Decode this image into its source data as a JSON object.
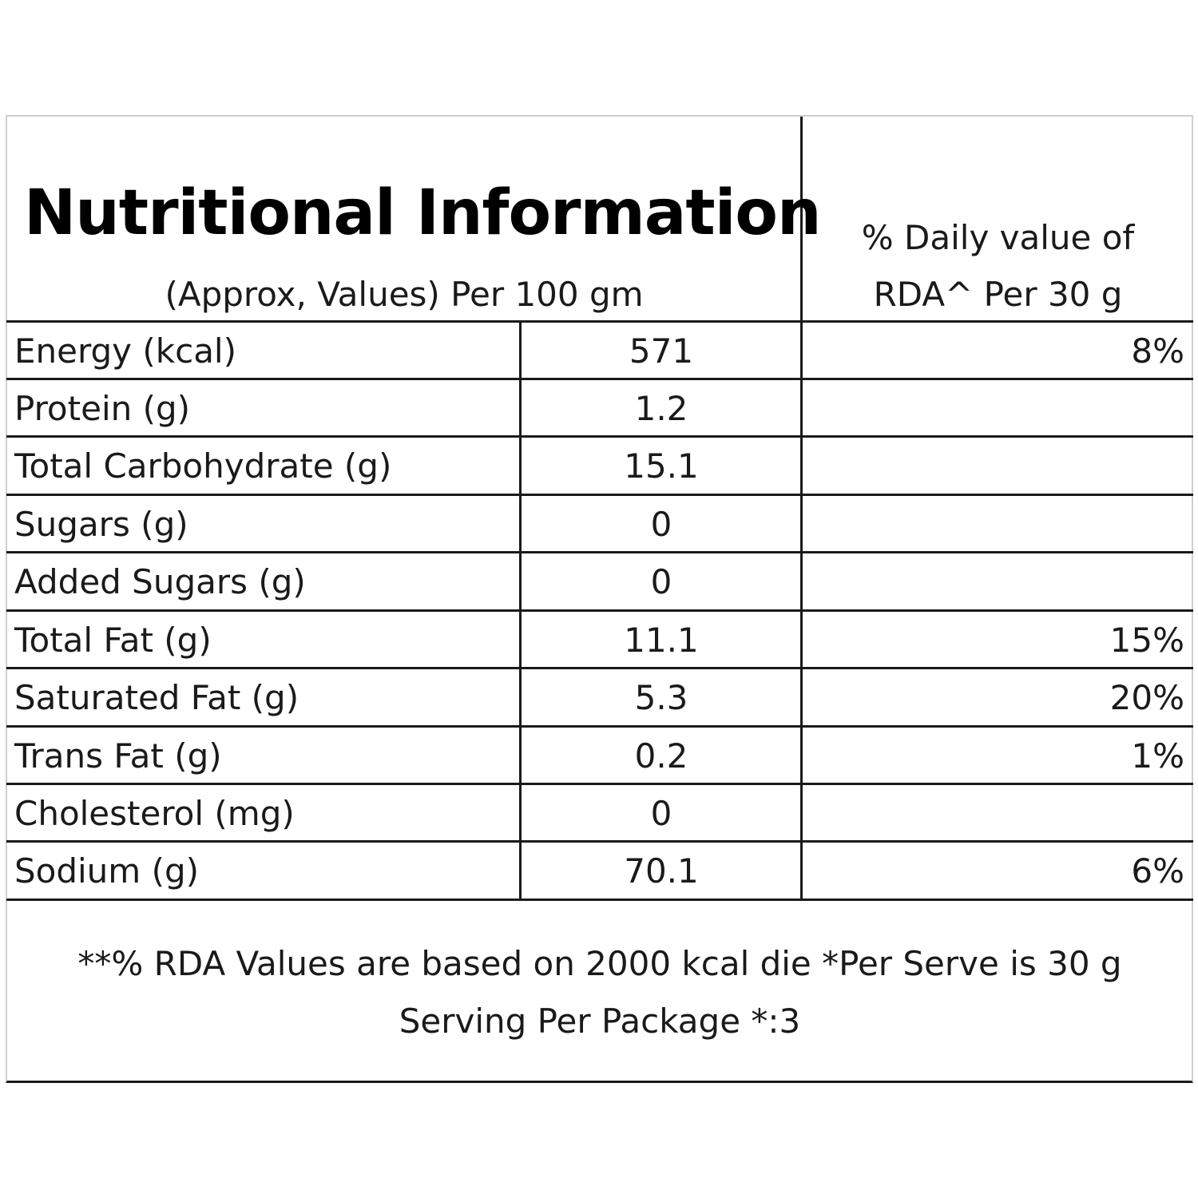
{
  "header": {
    "title": "Nutritional Information",
    "subtitle": "(Approx, Values) Per 100 gm",
    "rda_line1": "% Daily value of",
    "rda_line2": "RDA^ Per 30 g"
  },
  "rows": [
    {
      "label": "Energy (kcal)",
      "value": "571",
      "rda": "8%"
    },
    {
      "label": "Protein (g)",
      "value": "1.2",
      "rda": ""
    },
    {
      "label": "Total Carbohydrate (g)",
      "value": "15.1",
      "rda": ""
    },
    {
      "label": "Sugars (g)",
      "value": "0",
      "rda": ""
    },
    {
      "label": "Added Sugars (g)",
      "value": "0",
      "rda": ""
    },
    {
      "label": "Total Fat (g)",
      "value": "11.1",
      "rda": "15%"
    },
    {
      "label": "Saturated Fat (g)",
      "value": "5.3",
      "rda": "20%"
    },
    {
      "label": "Trans Fat (g)",
      "value": "0.2",
      "rda": "1%"
    },
    {
      "label": "Cholesterol (mg)",
      "value": "0",
      "rda": ""
    },
    {
      "label": "Sodium (g)",
      "value": "70.1",
      "rda": "6%"
    }
  ],
  "footnote": {
    "line1": "**% RDA Values are based on 2000 kcal die *Per Serve is 30 g",
    "line2": "Serving Per Package *:3"
  }
}
